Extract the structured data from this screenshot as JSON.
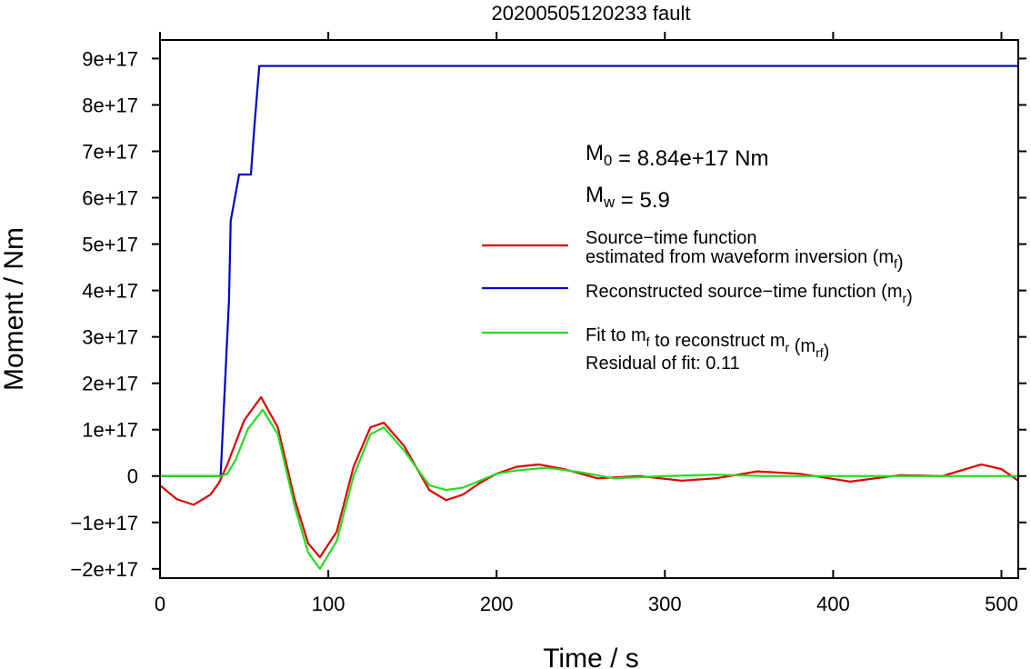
{
  "chart_data": {
    "type": "line",
    "title": "20200505120233 fault",
    "xlabel": "Time / s",
    "ylabel": "Moment / Nm",
    "xlim": [
      0,
      510
    ],
    "ylim": [
      -2.2e+17,
      9.4e+17
    ],
    "x_ticks": [
      0,
      100,
      200,
      300,
      400,
      500
    ],
    "x_tick_labels": [
      "0",
      "100",
      "200",
      "300",
      "400",
      "500"
    ],
    "y_ticks": [
      -2e+17,
      -1e+17,
      0,
      1e+17,
      2e+17,
      3e+17,
      4e+17,
      5e+17,
      6e+17,
      7e+17,
      8e+17,
      9e+17
    ],
    "y_tick_labels": [
      "−2e+17",
      "−1e+17",
      "0",
      "1e+17",
      "2e+17",
      "3e+17",
      "4e+17",
      "5e+17",
      "6e+17",
      "7e+17",
      "8e+17",
      "9e+17"
    ],
    "grid": false,
    "legend_position": "right",
    "annotations": {
      "m0": {
        "prefix": "M",
        "sub": "0",
        "text": " = 8.84e+17 Nm"
      },
      "mw": {
        "prefix": "M",
        "sub": "w",
        "text": " = 5.9"
      },
      "residual": "Residual of fit: 0.11"
    },
    "series": [
      {
        "label_lines": [
          [
            {
              "t": "Source−time function"
            }
          ],
          [
            {
              "t": "estimated from waveform inversion (m"
            },
            {
              "sub": "f"
            },
            {
              "t": ")"
            }
          ]
        ],
        "color": "#e00000",
        "x": [
          0,
          10,
          20,
          30,
          35,
          40,
          50,
          60,
          70,
          80,
          88,
          95,
          105,
          115,
          125,
          133,
          145,
          160,
          170,
          180,
          190,
          200,
          212,
          225,
          240,
          260,
          285,
          310,
          330,
          355,
          380,
          410,
          440,
          465,
          488,
          500,
          510
        ],
        "y": [
          -2e+16,
          -5e+16,
          -6.2e+16,
          -4e+16,
          -1.5e+16,
          2.5e+16,
          1.2e+17,
          1.7e+17,
          1.05e+17,
          -5e+16,
          -1.45e+17,
          -1.75e+17,
          -1.2e+17,
          2e+16,
          1.05e+17,
          1.15e+17,
          6.5e+16,
          -3e+16,
          -5.2e+16,
          -4e+16,
          -1.5e+16,
          5000000000000000.0,
          2e+16,
          2.5e+16,
          1.5e+16,
          -5000000000000000.0,
          0.0,
          -1e+16,
          -5000000000000000.0,
          1e+16,
          5000000000000000.0,
          -1.2e+16,
          2000000000000000.0,
          0.0,
          2.5e+16,
          1.5e+16,
          -1e+16
        ]
      },
      {
        "label_lines": [
          [
            {
              "t": "Reconstructed source−time function (m"
            },
            {
              "sub": "r"
            },
            {
              "t": ")"
            }
          ]
        ],
        "color": "#0000cc",
        "x": [
          0,
          36,
          41,
          42,
          47,
          50,
          54,
          56,
          59,
          60,
          510
        ],
        "y": [
          0,
          0,
          3.8e+17,
          5.5e+17,
          6.5e+17,
          6.5e+17,
          6.5e+17,
          7.5e+17,
          8.84e+17,
          8.84e+17,
          8.84e+17
        ]
      },
      {
        "label_lines": [
          [
            {
              "t": "Fit to m"
            },
            {
              "sub": "f"
            },
            {
              "t": " to reconstruct m"
            },
            {
              "sub": "r"
            },
            {
              "t": " (m"
            },
            {
              "sub": "rf"
            },
            {
              "t": ")"
            }
          ]
        ],
        "color": "#22dd22",
        "x": [
          0,
          36,
          40,
          45,
          52,
          61,
          70,
          80,
          88,
          95,
          105,
          115,
          125,
          133,
          145,
          160,
          170,
          180,
          190,
          200,
          212,
          230,
          250,
          270,
          300,
          330,
          360,
          400,
          450,
          510
        ],
        "y": [
          0,
          0,
          5000000000000000.0,
          3.5e+16,
          1e+17,
          1.43e+17,
          9e+16,
          -6.5e+16,
          -1.65e+17,
          -2e+17,
          -1.4e+17,
          0.0,
          9e+16,
          1.05e+17,
          5.5e+16,
          -2e+16,
          -3e+16,
          -2.5e+16,
          -1e+16,
          5000000000000000.0,
          1.2e+16,
          1.8e+16,
          8000000000000000.0,
          -5000000000000000.0,
          0.0,
          3000000000000000.0,
          0.0,
          0.0,
          0.0,
          0.0
        ]
      }
    ]
  }
}
